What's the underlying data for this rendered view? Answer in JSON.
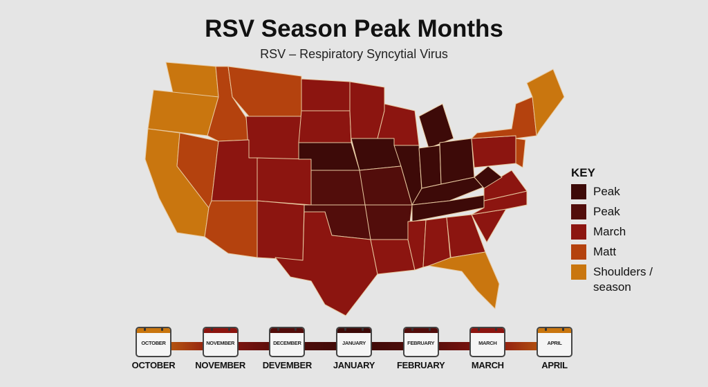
{
  "header": {
    "title": "RSV Season Peak Months",
    "subtitle": "RSV – Respiratory Syncytial Virus"
  },
  "colors": {
    "peak_dark": "#3d0a08",
    "peak": "#520d0b",
    "march": "#8c1510",
    "matt": "#b4420e",
    "shoulders": "#c9760f",
    "background": "#e5e5e5"
  },
  "key": {
    "title": "KEY",
    "items": [
      {
        "label": "Peak",
        "color": "#3d0a08"
      },
      {
        "label": "Peak",
        "color": "#520d0b"
      },
      {
        "label": "March",
        "color": "#8c1510"
      },
      {
        "label": "Matt",
        "color": "#b4420e"
      },
      {
        "label": "Shoulders / season",
        "color": "#c9760f"
      }
    ]
  },
  "timeline": {
    "months": [
      {
        "calendar": "OCTOBER",
        "label": "OCTOBER",
        "color": "#c9760f"
      },
      {
        "calendar": "NOVEMBER",
        "label": "NOVEMBER",
        "color": "#8c1510"
      },
      {
        "calendar": "DECEMBER",
        "label": "DEVEMBER",
        "color": "#520d0b"
      },
      {
        "calendar": "JANUARY",
        "label": "JANUARY",
        "color": "#3d0a08"
      },
      {
        "calendar": "FEBRUARY",
        "label": "FEBRUARY",
        "color": "#520d0b"
      },
      {
        "calendar": "MARCH",
        "label": "MARCH",
        "color": "#8c1510"
      },
      {
        "calendar": "APRIL",
        "label": "APRIL",
        "color": "#c9760f"
      }
    ]
  }
}
